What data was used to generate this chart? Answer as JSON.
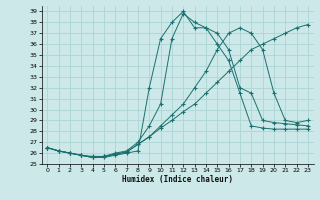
{
  "xlabel": "Humidex (Indice chaleur)",
  "xlim": [
    -0.5,
    23.5
  ],
  "ylim": [
    25.0,
    39.5
  ],
  "yticks": [
    25,
    26,
    27,
    28,
    29,
    30,
    31,
    32,
    33,
    34,
    35,
    36,
    37,
    38,
    39
  ],
  "xticks": [
    0,
    1,
    2,
    3,
    4,
    5,
    6,
    7,
    8,
    9,
    10,
    11,
    12,
    13,
    14,
    15,
    16,
    17,
    18,
    19,
    20,
    21,
    22,
    23
  ],
  "bg_color": "#cce8e8",
  "grid_color": "#aed4d4",
  "line_color": "#1a7070",
  "curves": [
    {
      "x": [
        0,
        1,
        2,
        3,
        4,
        5,
        6,
        7,
        8,
        9,
        10,
        11,
        12,
        13,
        14,
        15,
        16,
        17,
        18,
        19,
        20,
        21,
        22,
        23
      ],
      "y": [
        26.5,
        26.2,
        26.0,
        25.8,
        25.7,
        25.7,
        26.0,
        26.2,
        27.0,
        28.5,
        30.5,
        36.5,
        38.8,
        38.0,
        37.5,
        37.0,
        35.5,
        32.0,
        31.5,
        29.0,
        28.8,
        28.7,
        28.6,
        28.5
      ]
    },
    {
      "x": [
        0,
        1,
        2,
        3,
        4,
        5,
        6,
        7,
        8,
        9,
        10,
        11,
        12,
        13,
        14,
        15,
        16,
        17,
        18,
        19,
        20,
        21,
        22,
        23
      ],
      "y": [
        26.5,
        26.2,
        26.0,
        25.8,
        25.6,
        25.6,
        25.8,
        26.0,
        26.2,
        32.0,
        36.5,
        38.0,
        39.0,
        37.5,
        37.5,
        36.0,
        34.5,
        31.5,
        28.5,
        28.3,
        28.2,
        28.2,
        28.2,
        28.2
      ]
    },
    {
      "x": [
        0,
        1,
        2,
        3,
        4,
        5,
        6,
        7,
        8,
        9,
        10,
        11,
        12,
        13,
        14,
        15,
        16,
        17,
        18,
        19,
        20,
        21,
        22,
        23
      ],
      "y": [
        26.5,
        26.2,
        26.0,
        25.8,
        25.6,
        25.7,
        25.9,
        26.1,
        26.8,
        27.5,
        28.5,
        29.5,
        30.5,
        32.0,
        33.5,
        35.5,
        37.0,
        37.5,
        37.0,
        35.5,
        31.5,
        29.0,
        28.8,
        29.0
      ]
    },
    {
      "x": [
        0,
        1,
        2,
        3,
        4,
        5,
        6,
        7,
        8,
        9,
        10,
        11,
        12,
        13,
        14,
        15,
        16,
        17,
        18,
        19,
        20,
        21,
        22,
        23
      ],
      "y": [
        26.5,
        26.2,
        26.0,
        25.8,
        25.6,
        25.7,
        25.9,
        26.1,
        26.8,
        27.5,
        28.3,
        29.0,
        29.8,
        30.5,
        31.5,
        32.5,
        33.5,
        34.5,
        35.5,
        36.0,
        36.5,
        37.0,
        37.5,
        37.8
      ]
    }
  ]
}
